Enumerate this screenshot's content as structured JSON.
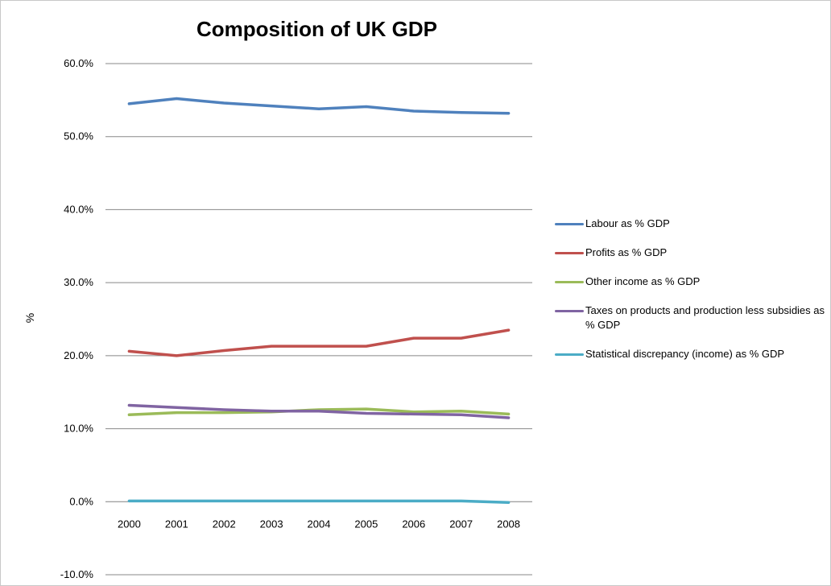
{
  "chart_data": {
    "type": "line",
    "title": "Composition of UK GDP",
    "xlabel": "",
    "ylabel": "%",
    "ylim": [
      -10,
      60
    ],
    "y_tick_step": 10,
    "y_tick_format": "percent_1dp",
    "grid": "horizontal",
    "legend_position": "right",
    "categories": [
      "2000",
      "2001",
      "2002",
      "2003",
      "2004",
      "2005",
      "2006",
      "2007",
      "2008"
    ],
    "y_tick_labels": [
      "-10.0%",
      "0.0%",
      "10.0%",
      "20.0%",
      "30.0%",
      "40.0%",
      "50.0%",
      "60.0%"
    ],
    "series": [
      {
        "name": "Labour as % GDP",
        "color": "#4f81bd",
        "values": [
          54.5,
          55.2,
          54.6,
          54.2,
          53.8,
          54.1,
          53.5,
          53.3,
          53.2
        ]
      },
      {
        "name": "Profits as % GDP",
        "color": "#c0504d",
        "values": [
          20.6,
          20.0,
          20.7,
          21.3,
          21.3,
          21.3,
          22.4,
          22.4,
          23.5
        ]
      },
      {
        "name": "Other income as % GDP",
        "color": "#9bbb59",
        "values": [
          11.9,
          12.2,
          12.2,
          12.3,
          12.6,
          12.7,
          12.3,
          12.4,
          12.0
        ]
      },
      {
        "name": "Taxes on products and production less subsidies as % GDP",
        "color": "#8064a2",
        "values": [
          13.2,
          12.9,
          12.6,
          12.4,
          12.4,
          12.1,
          12.0,
          11.9,
          11.5
        ]
      },
      {
        "name": "Statistical discrepancy (income) as % GDP",
        "color": "#4bacc6",
        "values": [
          0.1,
          0.1,
          0.1,
          0.1,
          0.1,
          0.1,
          0.1,
          0.1,
          -0.1
        ]
      }
    ]
  }
}
